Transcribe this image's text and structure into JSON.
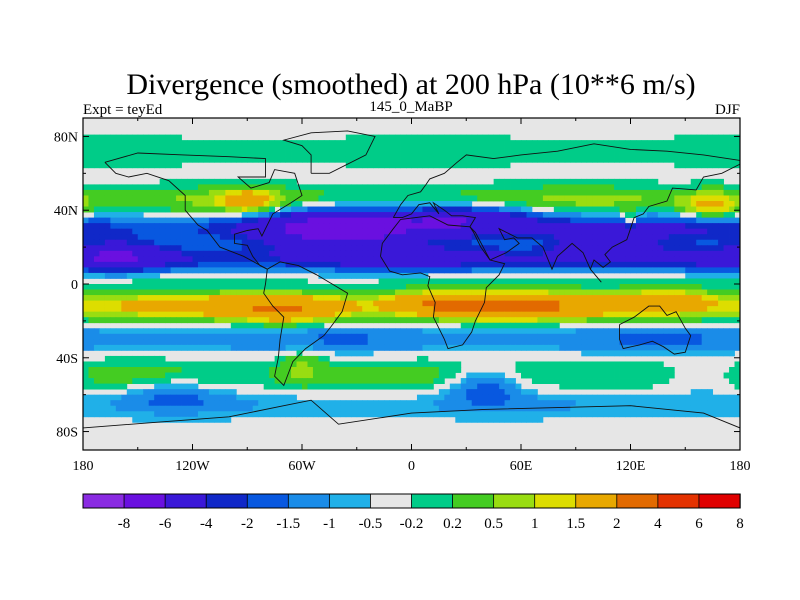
{
  "chart_data": {
    "type": "heatmap",
    "title": "Divergence (smoothed) at 200 hPa (10**6 m/s)",
    "subtitle_left": "Expt = teyEd",
    "subtitle_center": "145_0_MaBP",
    "subtitle_right": "DJF",
    "x_ticks": [
      "180",
      "120W",
      "60W",
      "0",
      "60E",
      "120E",
      "180"
    ],
    "x_tick_values": [
      -180,
      -120,
      -60,
      0,
      60,
      120,
      180
    ],
    "y_ticks": [
      "80N",
      "40N",
      "0",
      "40S",
      "80S"
    ],
    "y_tick_values": [
      80,
      40,
      0,
      -40,
      -80
    ],
    "xlim": [
      -180,
      180
    ],
    "ylim": [
      -90,
      90
    ],
    "colorbar": {
      "labels": [
        "-8",
        "-6",
        "-4",
        "-2",
        "-1.5",
        "-1",
        "-0.5",
        "-0.2",
        "0.2",
        "0.5",
        "1",
        "1.5",
        "2",
        "4",
        "6",
        "8"
      ],
      "colors": [
        "#8a2be2",
        "#6a10e0",
        "#3a18d8",
        "#1028c8",
        "#0858e0",
        "#1a8ce8",
        "#20b0e8",
        "#e6e6e6",
        "#00cc88",
        "#44cc22",
        "#99dd11",
        "#dddd00",
        "#e8a800",
        "#e26a00",
        "#e43200",
        "#e00000"
      ]
    },
    "fields": {
      "bands": [
        {
          "lat": 72,
          "width": 10,
          "amp": 0.35
        },
        {
          "lat": 45,
          "width": 8,
          "amp": 1.0
        },
        {
          "lat": 30,
          "width": 8,
          "amp": -1.8
        },
        {
          "lat": 14,
          "width": 7,
          "amp": -2.2
        },
        {
          "lat": 2,
          "width": 4,
          "amp": 0.3
        },
        {
          "lat": -12,
          "width": 7,
          "amp": 2.4
        },
        {
          "lat": -30,
          "width": 7,
          "amp": -0.9
        },
        {
          "lat": -50,
          "width": 10,
          "amp": 0.6
        },
        {
          "lat": -65,
          "width": 8,
          "amp": -0.5
        }
      ],
      "blobs": [
        {
          "lon": -40,
          "lat": 30,
          "sx": 40,
          "sy": 12,
          "amp": -3.5
        },
        {
          "lon": 30,
          "lat": 35,
          "sx": 40,
          "sy": 8,
          "amp": -3.0
        },
        {
          "lon": 105,
          "lat": 20,
          "sx": 25,
          "sy": 8,
          "amp": -2.5
        },
        {
          "lon": -160,
          "lat": 15,
          "sx": 20,
          "sy": 8,
          "amp": -2.0
        },
        {
          "lon": -90,
          "lat": 45,
          "sx": 14,
          "sy": 6,
          "amp": 2.2
        },
        {
          "lon": 165,
          "lat": 42,
          "sx": 15,
          "sy": 7,
          "amp": 1.8
        },
        {
          "lon": 50,
          "lat": -12,
          "sx": 35,
          "sy": 7,
          "amp": 2.8
        },
        {
          "lon": -70,
          "lat": -15,
          "sx": 25,
          "sy": 7,
          "amp": 2.0
        },
        {
          "lon": 10,
          "lat": -10,
          "sx": 20,
          "sy": 6,
          "amp": 1.8
        },
        {
          "lon": 140,
          "lat": -8,
          "sx": 22,
          "sy": 6,
          "amp": 1.5
        },
        {
          "lon": 40,
          "lat": -55,
          "sx": 20,
          "sy": 10,
          "amp": -1.5
        },
        {
          "lon": -60,
          "lat": -45,
          "sx": 12,
          "sy": 10,
          "amp": 0.8
        },
        {
          "lon": 120,
          "lat": 35,
          "sx": 4,
          "sy": 4,
          "amp": 1.5
        },
        {
          "lon": -130,
          "lat": -60,
          "sx": 25,
          "sy": 8,
          "amp": -0.9
        },
        {
          "lon": 160,
          "lat": -50,
          "sx": 20,
          "sy": 10,
          "amp": -0.7
        }
      ]
    },
    "continents": [
      [
        [
          -168,
          66
        ],
        [
          -150,
          71
        ],
        [
          -125,
          70
        ],
        [
          -100,
          69
        ],
        [
          -80,
          68
        ],
        [
          -80,
          58
        ],
        [
          -95,
          58
        ],
        [
          -88,
          52
        ],
        [
          -78,
          55
        ],
        [
          -75,
          62
        ],
        [
          -64,
          60
        ],
        [
          -60,
          48
        ],
        [
          -66,
          44
        ],
        [
          -76,
          38
        ],
        [
          -80,
          30
        ],
        [
          -82,
          26
        ],
        [
          -84,
          30
        ],
        [
          -90,
          29
        ],
        [
          -97,
          27
        ],
        [
          -97,
          22
        ],
        [
          -90,
          21
        ],
        [
          -87,
          15
        ],
        [
          -83,
          10
        ],
        [
          -79,
          8
        ],
        [
          -92,
          15
        ],
        [
          -105,
          20
        ],
        [
          -112,
          29
        ],
        [
          -117,
          32
        ],
        [
          -124,
          40
        ],
        [
          -124,
          48
        ],
        [
          -133,
          56
        ],
        [
          -145,
          60
        ],
        [
          -155,
          58
        ],
        [
          -162,
          60
        ],
        [
          -168,
          66
        ]
      ],
      [
        [
          -79,
          8
        ],
        [
          -72,
          12
        ],
        [
          -62,
          10
        ],
        [
          -52,
          5
        ],
        [
          -35,
          -5
        ],
        [
          -38,
          -15
        ],
        [
          -44,
          -23
        ],
        [
          -48,
          -28
        ],
        [
          -58,
          -35
        ],
        [
          -65,
          -42
        ],
        [
          -70,
          -55
        ],
        [
          -75,
          -50
        ],
        [
          -73,
          -40
        ],
        [
          -72,
          -30
        ],
        [
          -70,
          -18
        ],
        [
          -76,
          -12
        ],
        [
          -81,
          -5
        ],
        [
          -80,
          0
        ],
        [
          -79,
          8
        ]
      ],
      [
        [
          -10,
          36
        ],
        [
          -6,
          43
        ],
        [
          -2,
          48
        ],
        [
          5,
          50
        ],
        [
          8,
          54
        ],
        [
          10,
          57
        ],
        [
          18,
          60
        ],
        [
          25,
          66
        ],
        [
          30,
          70
        ],
        [
          45,
          68
        ],
        [
          60,
          70
        ],
        [
          80,
          72
        ],
        [
          100,
          76
        ],
        [
          120,
          73
        ],
        [
          140,
          72
        ],
        [
          160,
          70
        ],
        [
          180,
          67
        ],
        [
          180,
          65
        ],
        [
          170,
          60
        ],
        [
          160,
          58
        ],
        [
          156,
          51
        ],
        [
          143,
          52
        ],
        [
          140,
          45
        ],
        [
          130,
          42
        ],
        [
          127,
          38
        ],
        [
          122,
          36
        ],
        [
          120,
          30
        ],
        [
          118,
          24
        ],
        [
          110,
          20
        ],
        [
          106,
          16
        ],
        [
          109,
          12
        ],
        [
          105,
          9
        ],
        [
          100,
          13
        ],
        [
          98,
          8
        ],
        [
          104,
          1
        ],
        [
          98,
          8
        ],
        [
          94,
          17
        ],
        [
          88,
          22
        ],
        [
          80,
          15
        ],
        [
          77,
          8
        ],
        [
          72,
          20
        ],
        [
          66,
          25
        ],
        [
          58,
          25
        ],
        [
          56,
          26
        ],
        [
          52,
          28
        ],
        [
          48,
          30
        ],
        [
          51,
          24
        ],
        [
          56,
          25
        ],
        [
          59,
          22
        ],
        [
          52,
          17
        ],
        [
          43,
          13
        ],
        [
          38,
          20
        ],
        [
          34,
          28
        ],
        [
          32,
          31
        ],
        [
          35,
          36
        ],
        [
          28,
          37
        ],
        [
          22,
          37
        ],
        [
          18,
          40
        ],
        [
          12,
          44
        ],
        [
          15,
          38
        ],
        [
          10,
          44
        ],
        [
          4,
          43
        ],
        [
          0,
          38
        ],
        [
          -5,
          36
        ],
        [
          -10,
          36
        ]
      ],
      [
        [
          -17,
          15
        ],
        [
          -16,
          22
        ],
        [
          -10,
          30
        ],
        [
          -6,
          35
        ],
        [
          10,
          37
        ],
        [
          20,
          32
        ],
        [
          32,
          31
        ],
        [
          35,
          28
        ],
        [
          43,
          13
        ],
        [
          51,
          11
        ],
        [
          48,
          5
        ],
        [
          41,
          -2
        ],
        [
          40,
          -10
        ],
        [
          35,
          -20
        ],
        [
          33,
          -26
        ],
        [
          28,
          -33
        ],
        [
          20,
          -35
        ],
        [
          18,
          -30
        ],
        [
          12,
          -18
        ],
        [
          13,
          -10
        ],
        [
          9,
          -1
        ],
        [
          10,
          4
        ],
        [
          5,
          6
        ],
        [
          -5,
          5
        ],
        [
          -12,
          7
        ],
        [
          -17,
          15
        ]
      ],
      [
        [
          114,
          -22
        ],
        [
          122,
          -18
        ],
        [
          130,
          -12
        ],
        [
          136,
          -12
        ],
        [
          140,
          -17
        ],
        [
          145,
          -15
        ],
        [
          150,
          -24
        ],
        [
          153,
          -28
        ],
        [
          150,
          -37
        ],
        [
          144,
          -38
        ],
        [
          138,
          -34
        ],
        [
          132,
          -31
        ],
        [
          125,
          -33
        ],
        [
          116,
          -35
        ],
        [
          114,
          -30
        ],
        [
          114,
          -22
        ]
      ],
      [
        [
          -55,
          60
        ],
        [
          -45,
          60
        ],
        [
          -25,
          70
        ],
        [
          -20,
          80
        ],
        [
          -35,
          83
        ],
        [
          -55,
          82
        ],
        [
          -70,
          78
        ],
        [
          -60,
          75
        ],
        [
          -55,
          70
        ],
        [
          -55,
          60
        ]
      ],
      [
        [
          -180,
          -78
        ],
        [
          -140,
          -75
        ],
        [
          -100,
          -72
        ],
        [
          -70,
          -66
        ],
        [
          -55,
          -63
        ],
        [
          -40,
          -76
        ],
        [
          0,
          -70
        ],
        [
          40,
          -68
        ],
        [
          80,
          -67
        ],
        [
          120,
          -66
        ],
        [
          160,
          -70
        ],
        [
          180,
          -78
        ]
      ]
    ]
  }
}
